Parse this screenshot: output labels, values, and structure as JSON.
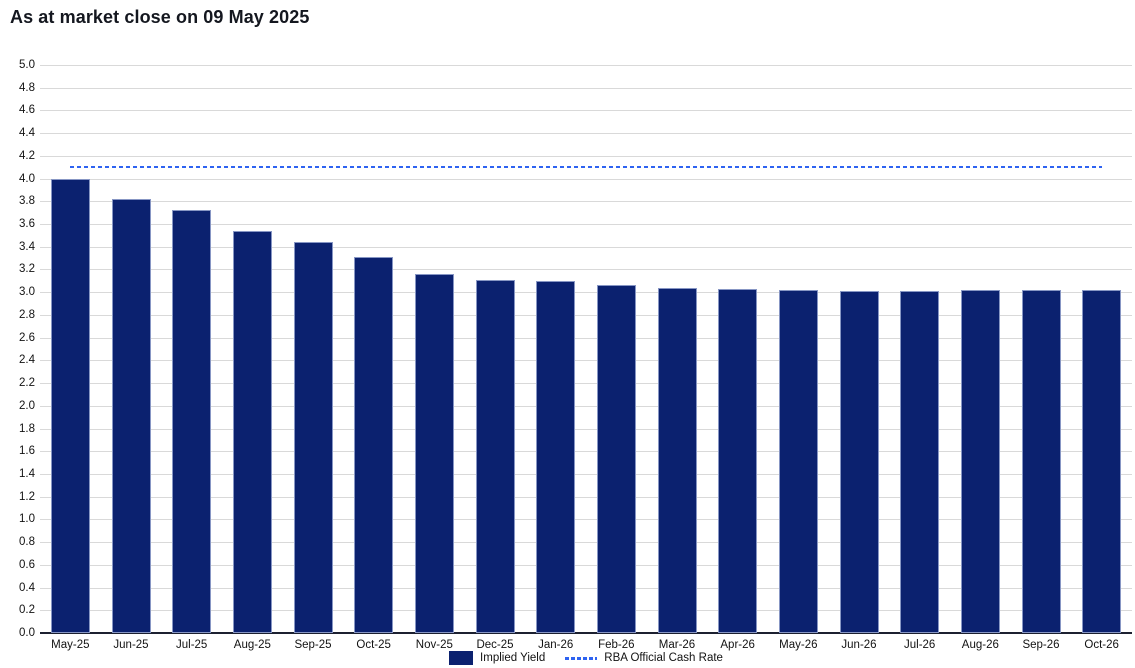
{
  "title": "As at market close on 09 May 2025",
  "chart_data": {
    "type": "bar",
    "categories": [
      "May-25",
      "Jun-25",
      "Jul-25",
      "Aug-25",
      "Sep-25",
      "Oct-25",
      "Nov-25",
      "Dec-25",
      "Jan-26",
      "Feb-26",
      "Mar-26",
      "Apr-26",
      "May-26",
      "Jun-26",
      "Jul-26",
      "Aug-26",
      "Sep-26",
      "Oct-26"
    ],
    "series": [
      {
        "name": "Implied Yield",
        "type": "bar",
        "color": "#0b216f",
        "values": [
          4.0,
          3.82,
          3.72,
          3.54,
          3.44,
          3.31,
          3.16,
          3.11,
          3.1,
          3.06,
          3.04,
          3.03,
          3.02,
          3.01,
          3.01,
          3.02,
          3.02,
          3.02
        ]
      },
      {
        "name": "RBA Official Cash Rate",
        "type": "line",
        "style": "dashed",
        "color": "#2e63f1",
        "value": 4.1
      }
    ],
    "title": "As at market close on 09 May 2025",
    "xlabel": "",
    "ylabel": "",
    "ylim": [
      0.0,
      5.0
    ],
    "ytick_step": 0.2,
    "grid": true,
    "legend_position": "bottom-center"
  },
  "colors": {
    "bar": "#0b216f",
    "bar_border": "#8796c4",
    "rba_line": "#2e63f1",
    "gridline": "#d9d9d9",
    "axis_baseline": "#1c2030",
    "text": "#121212",
    "title": "#14171f",
    "background": "#ffffff"
  }
}
